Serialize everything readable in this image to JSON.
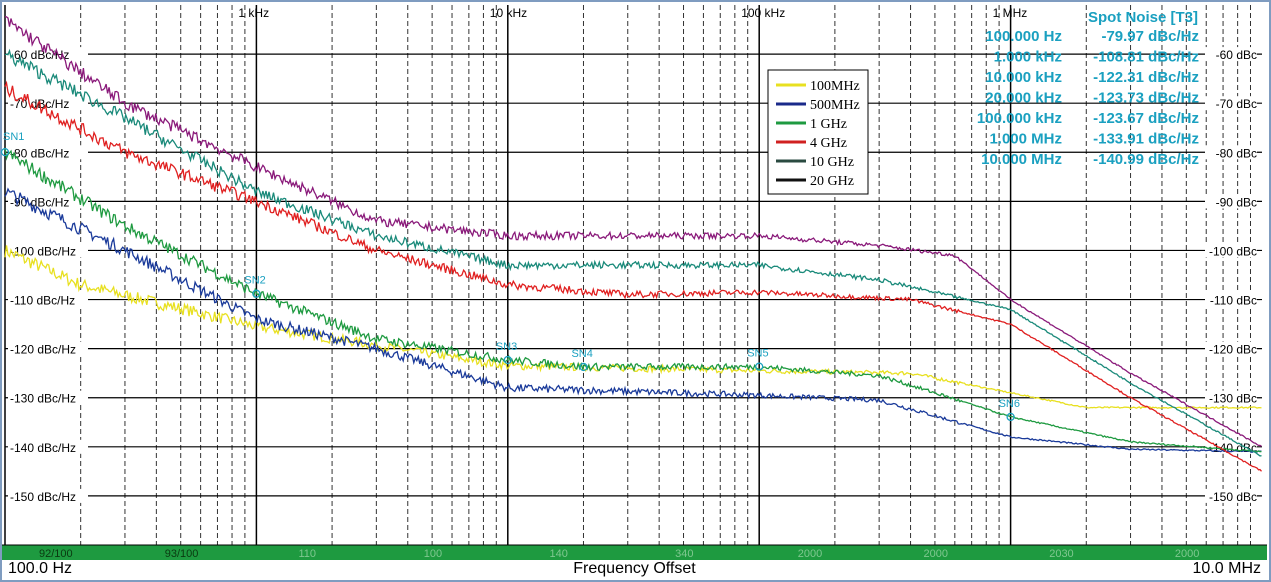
{
  "chart_data": {
    "type": "line",
    "x_scale": "log",
    "xlim_hz": [
      100,
      10000000
    ],
    "ylim": [
      -160,
      -50
    ],
    "grid": true,
    "x_top_tick_labels": [
      {
        "hz": 1000,
        "label": "1 kHz"
      },
      {
        "hz": 10000,
        "label": "10 kHz"
      },
      {
        "hz": 100000,
        "label": "100 kHz"
      },
      {
        "hz": 1000000,
        "label": "1 MHz"
      }
    ],
    "y_left_tick_labels": [
      {
        "v": -60,
        "label": "-60 dBc/Hz"
      },
      {
        "v": -70,
        "label": "-70 dBc/Hz"
      },
      {
        "v": -80,
        "label": "-80 dBc/Hz"
      },
      {
        "v": -90,
        "label": "-90 dBc/Hz"
      },
      {
        "v": -100,
        "label": "-100 dBc/Hz"
      },
      {
        "v": -110,
        "label": "-110 dBc/Hz"
      },
      {
        "v": -120,
        "label": "-120 dBc/Hz"
      },
      {
        "v": -130,
        "label": "-130 dBc/Hz"
      },
      {
        "v": -140,
        "label": "-140 dBc/Hz"
      },
      {
        "v": -150,
        "label": "-150 dBc/Hz"
      }
    ],
    "y_right_tick_labels": [
      {
        "v": -60,
        "label": "-60 dBc"
      },
      {
        "v": -70,
        "label": "-70 dBc"
      },
      {
        "v": -80,
        "label": "-80 dBc"
      },
      {
        "v": -90,
        "label": "-90 dBc"
      },
      {
        "v": -100,
        "label": "-100 dBc"
      },
      {
        "v": -110,
        "label": "-110 dBc"
      },
      {
        "v": -120,
        "label": "-120 dBc"
      },
      {
        "v": -130,
        "label": "-130 dBc"
      },
      {
        "v": -140,
        "label": "-140 dBc"
      },
      {
        "v": -150,
        "label": "-150 dBc"
      }
    ],
    "xlabel": "Frequency Offset",
    "x_start_label": "100.0 Hz",
    "x_end_label": "10.0 MHz",
    "legend_position": "top-center",
    "series": [
      {
        "name": "100MHz",
        "color": "#e8e020",
        "legend_color": "#e8e020",
        "x": [
          100,
          200,
          1000,
          10000,
          100000,
          400000,
          1000000,
          2000000,
          10000000
        ],
        "values": [
          -100,
          -107,
          -115.5,
          -123.5,
          -124.5,
          -125,
          -129,
          -132,
          -132
        ]
      },
      {
        "name": "500MHz",
        "color": "#1a3a9a",
        "legend_color": "#1a2a8a",
        "x": [
          100,
          300,
          1000,
          3000,
          10000,
          100000,
          300000,
          1000000,
          3000000,
          10000000
        ],
        "values": [
          -88,
          -100,
          -114,
          -120,
          -128,
          -129.5,
          -130.5,
          -138,
          -140.5,
          -141
        ]
      },
      {
        "name": "1 GHz",
        "color": "#1e9a40",
        "legend_color": "#1e9a40",
        "x": [
          100,
          300,
          1000,
          3000,
          10000,
          20000,
          100000,
          300000,
          500000,
          1000000,
          3000000,
          10000000
        ],
        "values": [
          -80,
          -95,
          -108.8,
          -118,
          -122.3,
          -123.7,
          -123.7,
          -125.5,
          -129,
          -133.9,
          -139,
          -141
        ]
      },
      {
        "name": "4 GHz",
        "color": "#e02020",
        "legend_color": "#d02020",
        "x": [
          100,
          300,
          1000,
          3000,
          10000,
          30000,
          100000,
          400000,
          1000000,
          3000000,
          10000000
        ],
        "values": [
          -67,
          -80,
          -90,
          -100,
          -107,
          -109,
          -108.5,
          -110,
          -115,
          -130,
          -145
        ]
      },
      {
        "name": "10 GHz",
        "color": "#1a8a7a",
        "legend_color": "#2a4a40",
        "x": [
          100,
          300,
          1000,
          3000,
          10000,
          100000,
          300000,
          1000000,
          3000000,
          10000000
        ],
        "values": [
          -60,
          -73,
          -88,
          -97,
          -103,
          -103,
          -106,
          -112,
          -127,
          -142
        ]
      },
      {
        "name": "20 GHz",
        "color": "#8a1a7a",
        "legend_color": "#111111",
        "x": [
          100,
          300,
          1000,
          3000,
          10000,
          100000,
          300000,
          600000,
          1000000,
          3000000,
          10000000
        ],
        "values": [
          -53,
          -70,
          -83,
          -94,
          -97,
          -97,
          -99,
          -101,
          -110,
          -125,
          -140
        ]
      }
    ],
    "markers": [
      {
        "label": "SN1",
        "hz": 100,
        "v": -79.97
      },
      {
        "label": "SN2",
        "hz": 1000,
        "v": -108.81
      },
      {
        "label": "SN3",
        "hz": 10000,
        "v": -122.31
      },
      {
        "label": "SN4",
        "hz": 20000,
        "v": -123.73
      },
      {
        "label": "SN5",
        "hz": 100000,
        "v": -123.67
      },
      {
        "label": "SN6",
        "hz": 1000000,
        "v": -133.91
      }
    ],
    "spot_noise": {
      "title": "Spot Noise [T3]",
      "rows": [
        {
          "freq": "100.000 Hz",
          "value": "-79.97 dBc/Hz"
        },
        {
          "freq": "1.000 kHz",
          "value": "-108.81 dBc/Hz"
        },
        {
          "freq": "10.000 kHz",
          "value": "-122.31 dBc/Hz"
        },
        {
          "freq": "20.000 kHz",
          "value": "-123.73 dBc/Hz"
        },
        {
          "freq": "100.000 kHz",
          "value": "-123.67 dBc/Hz"
        },
        {
          "freq": "1.000 MHz",
          "value": "-133.91 dBc/Hz"
        },
        {
          "freq": "10.000 MHz",
          "value": "-140.99 dBc/Hz"
        }
      ]
    },
    "bottom_bar_labels": [
      "92/100",
      "93/100",
      "110",
      "100",
      "140",
      "340",
      "2000",
      "2000",
      "2030",
      "2000"
    ],
    "colors": {
      "marker": "#1aa0c0",
      "bottom_bar": "#1e9a40"
    }
  }
}
